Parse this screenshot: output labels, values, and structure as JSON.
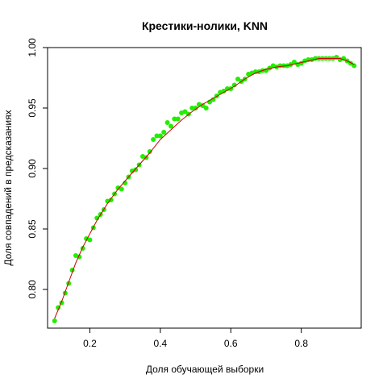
{
  "chart_data": {
    "type": "scatter",
    "title": "Крестики-нолики, KNN",
    "xlabel": "Доля обучающей выборки",
    "ylabel": "Доля совпадений в предсказаниях",
    "xlim": [
      0.08,
      0.97
    ],
    "ylim": [
      0.768,
      1.0
    ],
    "xticks": [
      0.2,
      0.4,
      0.6,
      0.8
    ],
    "xtick_labels": [
      "0.2",
      "0.4",
      "0.6",
      "0.8"
    ],
    "yticks": [
      0.8,
      0.85,
      0.9,
      0.95,
      1.0
    ],
    "ytick_labels": [
      "0.80",
      "0.85",
      "0.90",
      "0.95",
      "1.00"
    ],
    "grid": false,
    "colors": {
      "points": "#22ee00",
      "smooth_line": "#cc0000",
      "axes": "#000000"
    },
    "points": {
      "x": [
        0.1,
        0.11,
        0.12,
        0.13,
        0.14,
        0.15,
        0.16,
        0.17,
        0.18,
        0.19,
        0.2,
        0.21,
        0.22,
        0.23,
        0.24,
        0.25,
        0.26,
        0.27,
        0.28,
        0.29,
        0.3,
        0.31,
        0.32,
        0.33,
        0.34,
        0.35,
        0.36,
        0.37,
        0.38,
        0.39,
        0.4,
        0.41,
        0.42,
        0.43,
        0.44,
        0.45,
        0.46,
        0.47,
        0.48,
        0.49,
        0.5,
        0.51,
        0.52,
        0.53,
        0.54,
        0.55,
        0.56,
        0.57,
        0.58,
        0.59,
        0.6,
        0.61,
        0.62,
        0.63,
        0.64,
        0.65,
        0.66,
        0.67,
        0.68,
        0.69,
        0.7,
        0.71,
        0.72,
        0.73,
        0.74,
        0.75,
        0.76,
        0.77,
        0.78,
        0.79,
        0.8,
        0.81,
        0.82,
        0.83,
        0.84,
        0.85,
        0.86,
        0.87,
        0.88,
        0.89,
        0.9,
        0.91,
        0.92,
        0.93,
        0.94,
        0.95
      ],
      "y": [
        0.774,
        0.785,
        0.789,
        0.797,
        0.805,
        0.816,
        0.828,
        0.827,
        0.834,
        0.842,
        0.841,
        0.851,
        0.859,
        0.862,
        0.866,
        0.873,
        0.874,
        0.879,
        0.884,
        0.883,
        0.888,
        0.893,
        0.898,
        0.899,
        0.903,
        0.91,
        0.909,
        0.914,
        0.924,
        0.927,
        0.927,
        0.93,
        0.938,
        0.935,
        0.941,
        0.941,
        0.946,
        0.947,
        0.945,
        0.95,
        0.95,
        0.953,
        0.952,
        0.95,
        0.955,
        0.957,
        0.96,
        0.963,
        0.964,
        0.966,
        0.966,
        0.969,
        0.974,
        0.972,
        0.974,
        0.978,
        0.979,
        0.98,
        0.98,
        0.981,
        0.981,
        0.983,
        0.985,
        0.984,
        0.985,
        0.985,
        0.985,
        0.986,
        0.988,
        0.986,
        0.987,
        0.989,
        0.99,
        0.99,
        0.991,
        0.991,
        0.991,
        0.991,
        0.991,
        0.991,
        0.992,
        0.99,
        0.991,
        0.989,
        0.987,
        0.985
      ]
    },
    "smooth_line": {
      "x": [
        0.1,
        0.12,
        0.14,
        0.16,
        0.18,
        0.2,
        0.22,
        0.25,
        0.28,
        0.31,
        0.34,
        0.37,
        0.4,
        0.43,
        0.46,
        0.49,
        0.52,
        0.55,
        0.58,
        0.61,
        0.64,
        0.67,
        0.7,
        0.73,
        0.76,
        0.79,
        0.82,
        0.85,
        0.88,
        0.91,
        0.93,
        0.95
      ],
      "y": [
        0.776,
        0.79,
        0.806,
        0.822,
        0.835,
        0.846,
        0.857,
        0.871,
        0.883,
        0.893,
        0.903,
        0.913,
        0.924,
        0.932,
        0.94,
        0.947,
        0.953,
        0.958,
        0.963,
        0.968,
        0.974,
        0.979,
        0.982,
        0.984,
        0.985,
        0.987,
        0.989,
        0.991,
        0.991,
        0.991,
        0.989,
        0.986
      ]
    }
  }
}
